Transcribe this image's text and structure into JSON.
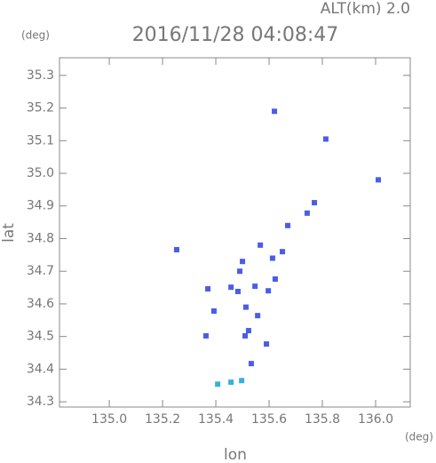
{
  "chart_data": {
    "type": "scatter",
    "title": "2016/11/28 04:08:47",
    "subtitle": "ALT(km) 2.0",
    "x_label": "lon",
    "y_label": "lat",
    "x_unit": "(deg)",
    "y_unit": "(deg)",
    "xlim": [
      134.813,
      136.13
    ],
    "ylim": [
      34.284,
      35.354
    ],
    "xticks": [
      {
        "value": 135,
        "label": "135.0"
      },
      135.2,
      135.4,
      135.6,
      135.8,
      {
        "value": 136,
        "label": "136.0"
      }
    ],
    "yticks": [
      34.3,
      34.4,
      34.5,
      34.6,
      34.7,
      34.8,
      34.9,
      {
        "value": 35,
        "label": "35.0"
      },
      35.1,
      35.2,
      35.3
    ],
    "series": [
      {
        "color": "#4a5de8",
        "x": [
          135.62,
          135.813,
          136.01,
          135.77,
          135.743,
          135.67,
          135.567,
          135.253,
          135.65,
          135.5,
          135.613,
          135.49,
          135.623,
          135.37,
          135.457,
          135.483,
          135.547,
          135.597,
          135.513,
          135.393,
          135.557,
          135.523,
          135.51,
          135.363,
          135.59,
          135.533
        ],
        "y": [
          35.19,
          35.105,
          34.98,
          34.91,
          34.878,
          34.84,
          34.78,
          34.766,
          34.76,
          34.73,
          34.74,
          34.7,
          34.676,
          34.646,
          34.651,
          34.638,
          34.654,
          34.64,
          34.59,
          34.578,
          34.564,
          34.518,
          34.502,
          34.502,
          34.477,
          34.417
        ]
      },
      {
        "color": "#3aaedc",
        "x": [
          135.407,
          135.457,
          135.497
        ],
        "y": [
          34.354,
          34.36,
          34.365
        ]
      }
    ]
  }
}
